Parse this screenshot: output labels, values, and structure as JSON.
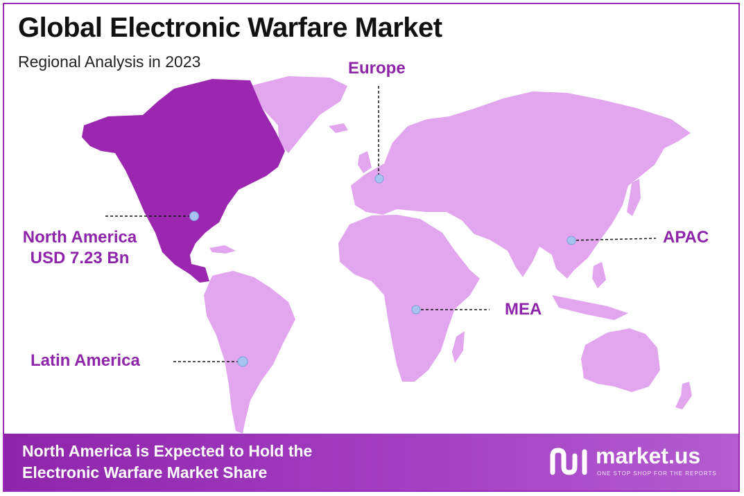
{
  "header": {
    "title": "Global Electronic Warfare Market",
    "subtitle": "Regional Analysis in 2023"
  },
  "regions": {
    "north_america": {
      "name": "North America",
      "value": "USD 7.23 Bn"
    },
    "europe": {
      "name": "Europe"
    },
    "apac": {
      "name": "APAC"
    },
    "mea": {
      "name": "MEA"
    },
    "latin_america": {
      "name": "Latin America"
    }
  },
  "footer": {
    "line1": "North America is Expected to Hold the",
    "line2": "Electronic Warfare Market Share"
  },
  "brand": {
    "name": "market.us",
    "tagline": "ONE STOP SHOP FOR THE REPORTS"
  },
  "colors": {
    "highlight_region": "#9b27b0",
    "other_regions": "#e1a6ee",
    "label": "#8e24aa",
    "marker": "#a7c4f0"
  }
}
